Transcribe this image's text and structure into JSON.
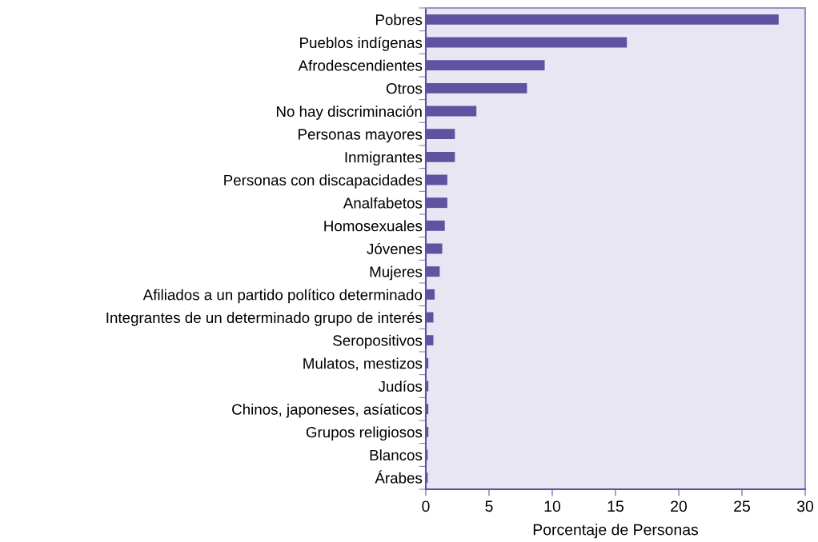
{
  "chart_data": {
    "type": "bar",
    "orientation": "horizontal",
    "xlabel": "Porcentaje de Personas",
    "categories": [
      "Pobres",
      "Pueblos indígenas",
      "Afrodescendientes",
      "Otros",
      "No hay discriminación",
      "Personas mayores",
      "Inmigrantes",
      "Personas con discapacidades",
      "Analfabetos",
      "Homosexuales",
      "Jóvenes",
      "Mujeres",
      "Afiliados a un partido político determinado",
      "Integrantes de un determinado grupo de interés",
      "Seropositivos",
      "Mulatos, mestizos",
      "Judíos",
      "Chinos, japoneses, asíaticos",
      "Grupos religiosos",
      "Blancos",
      "Árabes"
    ],
    "values": [
      27.9,
      15.9,
      9.4,
      8.0,
      4.0,
      2.3,
      2.3,
      1.7,
      1.7,
      1.5,
      1.3,
      1.1,
      0.7,
      0.6,
      0.6,
      0.2,
      0.2,
      0.2,
      0.2,
      0.15,
      0.15
    ],
    "color": "#6151a1",
    "xlim": [
      0,
      30
    ],
    "xticks": [
      0,
      5,
      10,
      15,
      20,
      25,
      30
    ],
    "grid": false,
    "legend": false
  }
}
